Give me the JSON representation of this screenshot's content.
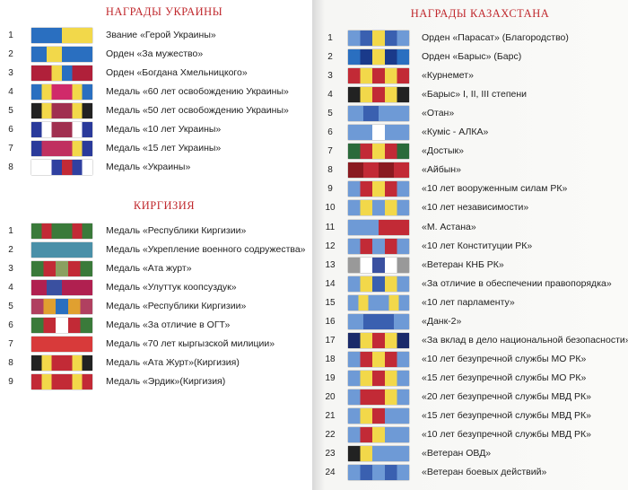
{
  "sections": [
    {
      "title": "НАГРАДЫ УКРАИНЫ",
      "items": [
        {
          "number": "1",
          "label": "Звание «Герой Украины»"
        },
        {
          "number": "2",
          "label": "Орден «За мужество»"
        },
        {
          "number": "3",
          "label": "Орден «Богдана Хмельницкого»"
        },
        {
          "number": "4",
          "label": "Медаль «60 лет освобождению Украины»"
        },
        {
          "number": "5",
          "label": "Медаль «50 лет освобождению Украины»"
        },
        {
          "number": "6",
          "label": "Медаль «10 лет Украины»"
        },
        {
          "number": "7",
          "label": "Медаль «15 лет Украины»"
        },
        {
          "number": "8",
          "label": "Медаль «Украины»"
        }
      ]
    },
    {
      "title": "КИРГИЗИЯ",
      "items": [
        {
          "number": "1",
          "label": "Медаль «Республики Киргизии»"
        },
        {
          "number": "2",
          "label": "Медаль «Укрепление военного содружества»"
        },
        {
          "number": "3",
          "label": "Медаль «Ата журт»"
        },
        {
          "number": "4",
          "label": "Медаль «Улуттук коопсуздук»"
        },
        {
          "number": "5",
          "label": "Медаль «Республики Киргизии»"
        },
        {
          "number": "6",
          "label": "Медаль «За отличие в ОГТ»"
        },
        {
          "number": "7",
          "label": "Медаль «70 лет кыргызской милиции»"
        },
        {
          "number": "8",
          "label": "Медаль «Ата Журт»(Киргизия)"
        },
        {
          "number": "9",
          "label": "Медаль «Эрдик»(Киргизия)"
        }
      ]
    },
    {
      "title": "НАГРАДЫ КАЗАХСТАНА",
      "items": [
        {
          "number": "1",
          "label": "Орден «Парасат» (Благородство)"
        },
        {
          "number": "2",
          "label": "Орден «Барыс» (Барс)"
        },
        {
          "number": "3",
          "label": "«Курнемет»"
        },
        {
          "number": "4",
          "label": "«Барыс» I, II, III степени"
        },
        {
          "number": "5",
          "label": "«Отан»"
        },
        {
          "number": "6",
          "label": "«Кумiс - АЛКА»"
        },
        {
          "number": "7",
          "label": "«Достык»"
        },
        {
          "number": "8",
          "label": "«Айбын»"
        },
        {
          "number": "9",
          "label": "«10 лет вооруженным силам РК»"
        },
        {
          "number": "10",
          "label": "«10 лет независимости»"
        },
        {
          "number": "11",
          "label": "«М. Астана»"
        },
        {
          "number": "12",
          "label": "«10 лет Конституции РК»"
        },
        {
          "number": "13",
          "label": "«Ветеран КНБ РК»"
        },
        {
          "number": "14",
          "label": "«За отличие в обеспечении правопорядка»"
        },
        {
          "number": "15",
          "label": "«10 лет парламенту»"
        },
        {
          "number": "16",
          "label": "«Данк-2»"
        },
        {
          "number": "17",
          "label": "«За вклад в дело национальной безопасности»"
        },
        {
          "number": "18",
          "label": "«10 лет безупречной службы МО РК»"
        },
        {
          "number": "19",
          "label": "«15 лет безупречной службы МО РК»"
        },
        {
          "number": "20",
          "label": "«20 лет безупречной службы МВД РК»"
        },
        {
          "number": "21",
          "label": "«15 лет безупречной службы МВД РК»"
        },
        {
          "number": "22",
          "label": "«10 лет безупречной службы МВД РК»"
        },
        {
          "number": "23",
          "label": "«Ветеран ОВД»"
        },
        {
          "number": "24",
          "label": "«Ветеран боевых действий»"
        }
      ]
    }
  ]
}
